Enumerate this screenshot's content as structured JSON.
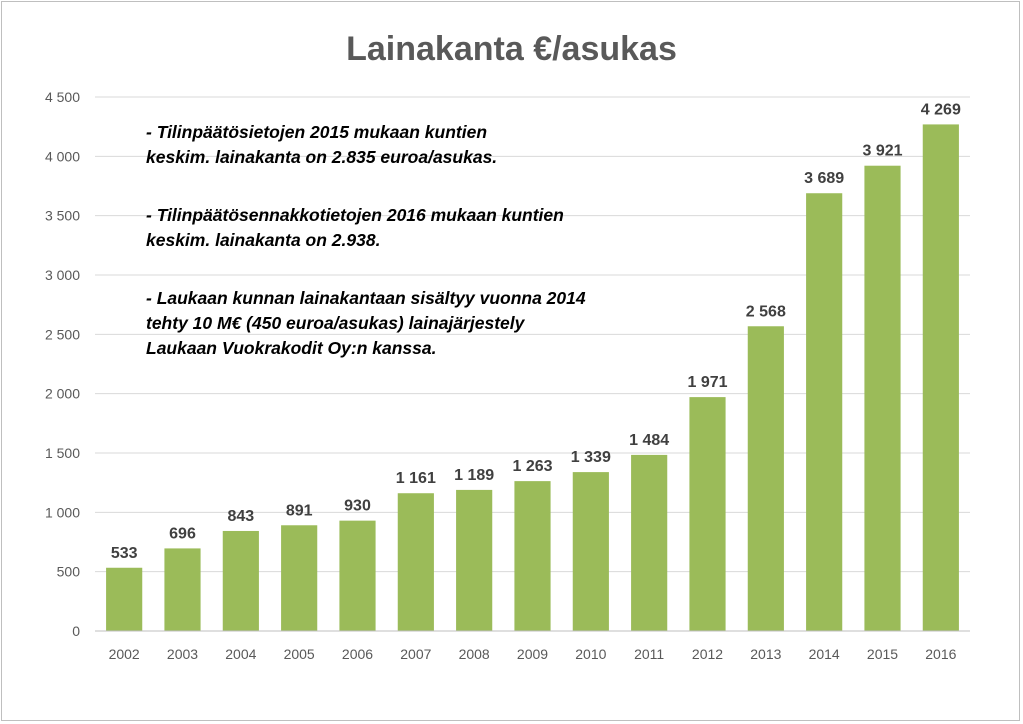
{
  "chart_data": {
    "type": "bar",
    "title": "Lainakanta €/asukas",
    "xlabel": "",
    "ylabel": "",
    "categories": [
      "2002",
      "2003",
      "2004",
      "2005",
      "2006",
      "2007",
      "2008",
      "2009",
      "2010",
      "2011",
      "2012",
      "2013",
      "2014",
      "2015",
      "2016"
    ],
    "values": [
      533,
      696,
      843,
      891,
      930,
      1161,
      1189,
      1263,
      1339,
      1484,
      1971,
      2568,
      3689,
      3921,
      4269
    ],
    "data_labels": [
      "533",
      "696",
      "843",
      "891",
      "930",
      "1 161",
      "1 189",
      "1 263",
      "1 339",
      "1 484",
      "1 971",
      "2 568",
      "3 689",
      "3 921",
      "4 269"
    ],
    "ylim": [
      0,
      4500
    ],
    "yticks": [
      0,
      500,
      1000,
      1500,
      2000,
      2500,
      3000,
      3500,
      4000,
      4500
    ],
    "ytick_labels": [
      "0",
      "500",
      "1 000",
      "1 500",
      "2 000",
      "2 500",
      "3 000",
      "3 500",
      "4 000",
      "4 500"
    ],
    "grid": true,
    "legend": "none",
    "annotations": [
      [
        "- Tilinpäätösietojen 2015 mukaan kuntien",
        "keskim. lainakanta on 2.835 euroa/asukas."
      ],
      [
        "- Tilinpäätösennakkotietojen 2016 mukaan kuntien",
        "keskim. lainakanta on 2.938."
      ],
      [
        "- Laukaan kunnan lainakantaan sisältyy vuonna 2014",
        "tehty 10 M€ (450 euroa/asukas) lainajärjestely",
        "Laukaan Vuokrakodit Oy:n kanssa."
      ]
    ]
  },
  "colors": {
    "bar": "#9bbb59",
    "gridline": "#d9d9d9",
    "axis_text": "#595959",
    "data_label": "#404040",
    "title": "#595959"
  }
}
